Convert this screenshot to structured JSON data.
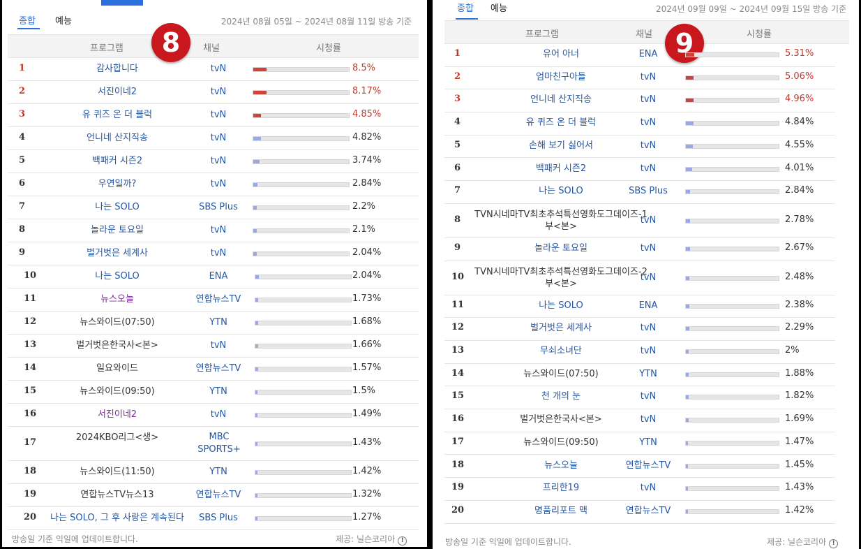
{
  "colors": {
    "accent": "#2a6fdb",
    "top_rank": "#c0392b",
    "bar_top": "#d0433b",
    "bar_normal": "#9aa8e6"
  },
  "left": {
    "badge": "8",
    "tabs": [
      "종합",
      "예능"
    ],
    "range": "2024년 08월 05일 ~ 2024년 08월 11일 방송 기준",
    "headers": {
      "program": "프로그램",
      "channel": "채널",
      "rating": "시청률"
    },
    "rows": [
      {
        "rank": "1",
        "program": "감사합니다",
        "channel": "tvN",
        "rating": "8.5%",
        "value": 8.5
      },
      {
        "rank": "2",
        "program": "서진이네2",
        "channel": "tvN",
        "rating": "8.17%",
        "value": 8.17
      },
      {
        "rank": "3",
        "program": "유 퀴즈 온 더 블럭",
        "channel": "tvN",
        "rating": "4.85%",
        "value": 4.85
      },
      {
        "rank": "4",
        "program": "언니네 산지직송",
        "channel": "tvN",
        "rating": "4.82%",
        "value": 4.82
      },
      {
        "rank": "5",
        "program": "백패커 시즌2",
        "channel": "tvN",
        "rating": "3.74%",
        "value": 3.74
      },
      {
        "rank": "6",
        "program": "우연일까?",
        "channel": "tvN",
        "rating": "2.84%",
        "value": 2.84
      },
      {
        "rank": "7",
        "program": "나는 SOLO",
        "channel": "SBS Plus",
        "rating": "2.2%",
        "value": 2.2
      },
      {
        "rank": "8",
        "program": "놀라운 토요일",
        "channel": "tvN",
        "rating": "2.1%",
        "value": 2.1
      },
      {
        "rank": "9",
        "program": "벌거벗은 세계사",
        "channel": "tvN",
        "rating": "2.04%",
        "value": 2.04
      },
      {
        "rank": "10",
        "program": "나는 SOLO",
        "channel": "ENA",
        "rating": "2.04%",
        "value": 2.04
      },
      {
        "rank": "11",
        "program": "뉴스오늘",
        "channel": "연합뉴스TV",
        "rating": "1.73%",
        "value": 1.73
      },
      {
        "rank": "12",
        "program": "뉴스와이드(07:50)",
        "channel": "YTN",
        "rating": "1.68%",
        "value": 1.68
      },
      {
        "rank": "13",
        "program": "벌거벗은한국사<본>",
        "channel": "tvN",
        "rating": "1.66%",
        "value": 1.66
      },
      {
        "rank": "14",
        "program": "일요와이드",
        "channel": "연합뉴스TV",
        "rating": "1.57%",
        "value": 1.57
      },
      {
        "rank": "15",
        "program": "뉴스와이드(09:50)",
        "channel": "YTN",
        "rating": "1.5%",
        "value": 1.5
      },
      {
        "rank": "16",
        "program": "서진이네2",
        "channel": "tvN",
        "rating": "1.49%",
        "value": 1.49
      },
      {
        "rank": "17",
        "program": "2024KBO리그<생>",
        "channel": "MBC SPORTS+",
        "rating": "1.43%",
        "value": 1.43
      },
      {
        "rank": "18",
        "program": "뉴스와이드(11:50)",
        "channel": "YTN",
        "rating": "1.42%",
        "value": 1.42
      },
      {
        "rank": "19",
        "program": "연합뉴스TV뉴스13",
        "channel": "연합뉴스TV",
        "rating": "1.32%",
        "value": 1.32
      },
      {
        "rank": "20",
        "program": "나는 SOLO, 그 후 사랑은 계속된다",
        "channel": "SBS Plus",
        "rating": "1.27%",
        "value": 1.27
      }
    ],
    "footer_left": "방송일 기준 익일에 업데이트합니다.",
    "footer_right": "제공: 닐슨코리아"
  },
  "right": {
    "badge": "9",
    "tabs": [
      "종합",
      "예능"
    ],
    "range": "2024년 09월 09일 ~ 2024년 09월 15일 방송 기준",
    "headers": {
      "program": "프로그램",
      "channel": "채널",
      "rating": "시청률"
    },
    "rows": [
      {
        "rank": "1",
        "program": "유어 아너",
        "channel": "ENA",
        "rating": "5.31%",
        "value": 5.31
      },
      {
        "rank": "2",
        "program": "엄마친구아들",
        "channel": "tvN",
        "rating": "5.06%",
        "value": 5.06
      },
      {
        "rank": "3",
        "program": "언니네 산지직송",
        "channel": "tvN",
        "rating": "4.96%",
        "value": 4.96
      },
      {
        "rank": "4",
        "program": "유 퀴즈 온 더 블럭",
        "channel": "tvN",
        "rating": "4.84%",
        "value": 4.84
      },
      {
        "rank": "5",
        "program": "손해 보기 싫어서",
        "channel": "tvN",
        "rating": "4.55%",
        "value": 4.55
      },
      {
        "rank": "6",
        "program": "백패커 시즌2",
        "channel": "tvN",
        "rating": "4.01%",
        "value": 4.01
      },
      {
        "rank": "7",
        "program": "나는 SOLO",
        "channel": "SBS Plus",
        "rating": "2.84%",
        "value": 2.84
      },
      {
        "rank": "8",
        "program": "TVN시네마TV최초추석특선영화도그데이즈-1부<본>",
        "channel": "tvN",
        "rating": "2.78%",
        "value": 2.78
      },
      {
        "rank": "9",
        "program": "놀라운 토요일",
        "channel": "tvN",
        "rating": "2.67%",
        "value": 2.67
      },
      {
        "rank": "10",
        "program": "TVN시네마TV최초추석특선영화도그데이즈-2부<본>",
        "channel": "tvN",
        "rating": "2.48%",
        "value": 2.48
      },
      {
        "rank": "11",
        "program": "나는 SOLO",
        "channel": "ENA",
        "rating": "2.38%",
        "value": 2.38
      },
      {
        "rank": "12",
        "program": "벌거벗은 세계사",
        "channel": "tvN",
        "rating": "2.29%",
        "value": 2.29
      },
      {
        "rank": "13",
        "program": "무쇠소녀단",
        "channel": "tvN",
        "rating": "2%",
        "value": 2
      },
      {
        "rank": "14",
        "program": "뉴스와이드(07:50)",
        "channel": "YTN",
        "rating": "1.88%",
        "value": 1.88
      },
      {
        "rank": "15",
        "program": "천 개의 눈",
        "channel": "tvN",
        "rating": "1.82%",
        "value": 1.82
      },
      {
        "rank": "16",
        "program": "벌거벗은한국사<본>",
        "channel": "tvN",
        "rating": "1.69%",
        "value": 1.69
      },
      {
        "rank": "17",
        "program": "뉴스와이드(09:50)",
        "channel": "YTN",
        "rating": "1.47%",
        "value": 1.47
      },
      {
        "rank": "18",
        "program": "뉴스오늘",
        "channel": "연합뉴스TV",
        "rating": "1.45%",
        "value": 1.45
      },
      {
        "rank": "19",
        "program": "프리한19",
        "channel": "tvN",
        "rating": "1.43%",
        "value": 1.43
      },
      {
        "rank": "20",
        "program": "명품리포트 맥",
        "channel": "연합뉴스TV",
        "rating": "1.42%",
        "value": 1.42
      }
    ],
    "footer_left": "방송일 기준 익일에 업데이트합니다.",
    "footer_right": "제공: 닐슨코리아"
  }
}
